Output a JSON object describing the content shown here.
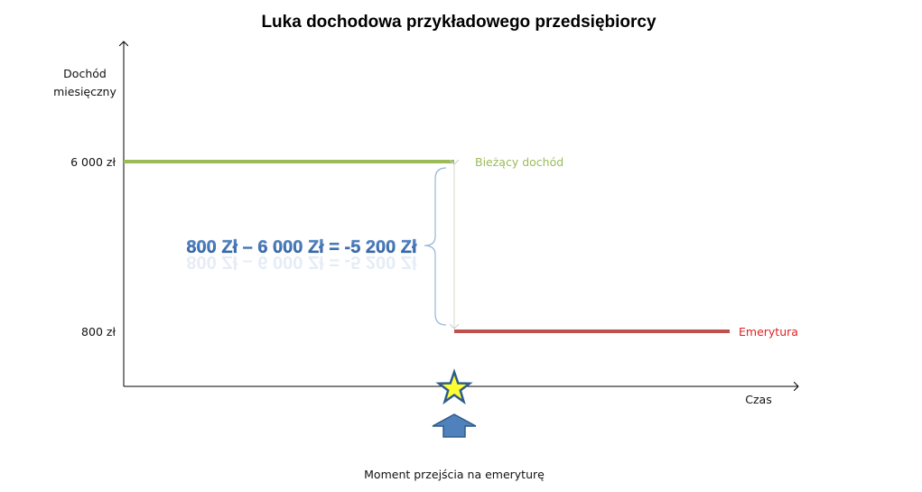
{
  "chart_data": {
    "type": "line",
    "title": "Luka dochodowa  przykładowego przedsiębiorcy",
    "ylabel_line1": "Dochód",
    "ylabel_line2": "miesięczny",
    "xlabel": "Czas",
    "y_ticks": [
      "6 000 zł",
      "800 zł"
    ],
    "y_values": [
      6000,
      800
    ],
    "series": [
      {
        "name": "Bieżący dochód",
        "value": 6000,
        "segment": "before-retirement",
        "color": "#9BBB59"
      },
      {
        "name": "Emerytura",
        "value": 800,
        "segment": "after-retirement",
        "color": "#C0504D"
      }
    ],
    "gap_annotation": "800 Zł – 6 000 Zł = -5 200 Zł",
    "gap_value": -5200,
    "event_label": "Moment  przejścia na emeryturę",
    "colors": {
      "annotation": "#3F6FAF",
      "current_income": "#9BBB59",
      "pension": "#C0504D",
      "star_fill": "#FFFF33",
      "star_stroke": "#2E5C8A",
      "arrow_fill": "#4F81BD"
    }
  }
}
